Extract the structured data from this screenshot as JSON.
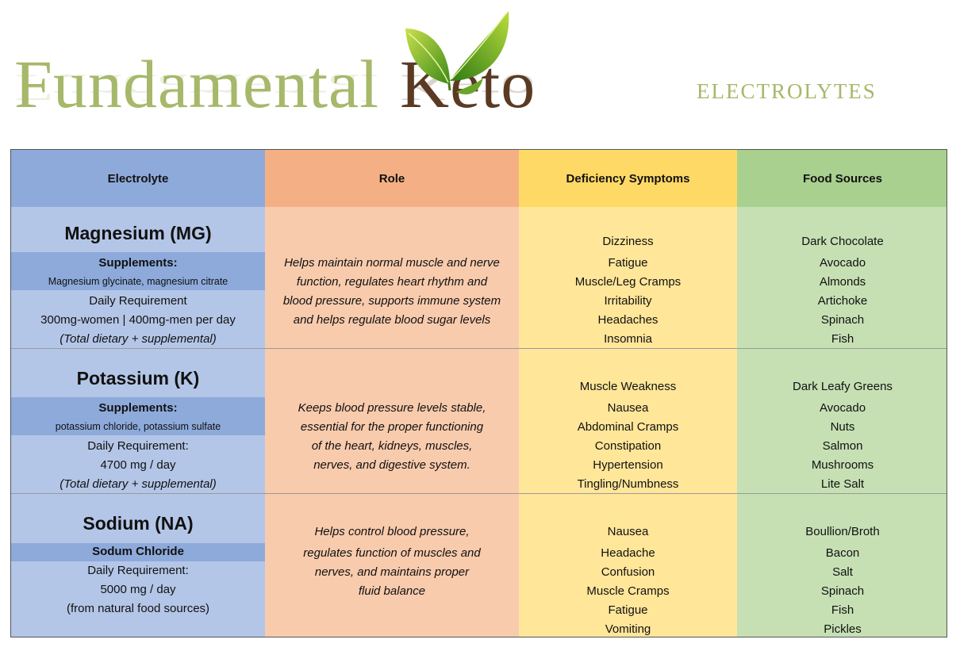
{
  "logo": {
    "word1": "Fundamental",
    "word2": "Keto"
  },
  "page_title": "electrolytes",
  "headers": {
    "electrolyte": "Electrolyte",
    "role": "Role",
    "deficiency": "Deficiency Symptoms",
    "food": "Food Sources"
  },
  "rows": [
    {
      "name": "Magnesium (MG)",
      "supp_title": "Supplements:",
      "supp_body": "Magnesium glycinate, magnesium citrate",
      "req_label": "Daily Requirement",
      "req_value": "300mg-women | 400mg-men per day",
      "req_note": "(Total dietary + supplemental)",
      "role": [
        "Helps maintain normal muscle and nerve",
        "function, regulates heart rhythm and",
        "blood pressure, supports immune system",
        "and helps regulate blood sugar levels"
      ],
      "symptoms": [
        "Dizziness",
        "Fatigue",
        "Muscle/Leg Cramps",
        "Irritability",
        "Headaches",
        "Insomnia"
      ],
      "foods": [
        "Dark Chocolate",
        "Avocado",
        "Almonds",
        "Artichoke",
        "Spinach",
        "Fish"
      ]
    },
    {
      "name": "Potassium (K)",
      "supp_title": "Supplements:",
      "supp_body": "potassium chloride, potassium sulfate",
      "req_label": "Daily Requirement:",
      "req_value": "4700 mg / day",
      "req_note": "(Total dietary + supplemental)",
      "role": [
        "Keeps blood pressure levels stable,",
        "essential for the proper functioning",
        "of the heart, kidneys, muscles,",
        "nerves, and digestive system."
      ],
      "symptoms": [
        "Muscle Weakness",
        "Nausea",
        "Abdominal Cramps",
        "Constipation",
        "Hypertension",
        "Tingling/Numbness"
      ],
      "foods": [
        "Dark Leafy Greens",
        "Avocado",
        "Nuts",
        "Salmon",
        "Mushrooms",
        "Lite Salt"
      ]
    },
    {
      "name": "Sodium (NA)",
      "supp_title": "Sodum Chloride",
      "req_label": "Daily Requirement:",
      "req_value": "5000 mg / day",
      "req_note": "(from natural food sources)",
      "role": [
        "Helps control blood pressure,",
        "regulates function of muscles and",
        "nerves, and maintains proper",
        "fluid balance"
      ],
      "symptoms": [
        "Nausea",
        "Headache",
        "Confusion",
        "Muscle Cramps",
        "Fatigue",
        "Vomiting"
      ],
      "foods": [
        "Boullion/Broth",
        "Bacon",
        "Salt",
        "Spinach",
        "Fish",
        "Pickles"
      ]
    }
  ],
  "colors": {
    "logo_green": "#a6b86a",
    "logo_brown": "#5a3a22",
    "electrolyte_col": "#b4c6e7",
    "electrolyte_hdr": "#8eaadb",
    "role_col": "#f8cbad",
    "role_hdr": "#f4b084",
    "deficiency_col": "#ffe699",
    "deficiency_hdr": "#ffd966",
    "food_col": "#c6e0b4",
    "food_hdr": "#a9d08e"
  },
  "icons": {
    "logo_leaf": "leaf-icon"
  }
}
